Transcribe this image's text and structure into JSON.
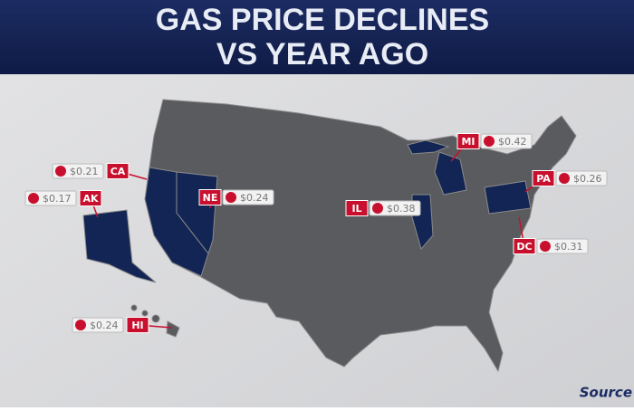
{
  "header": {
    "title_line1": "GAS PRICE DECLINES",
    "title_line2": "VS YEAR AGO"
  },
  "callouts": [
    {
      "state": "CA",
      "price": "$0.21"
    },
    {
      "state": "AK",
      "price": "$0.17"
    },
    {
      "state": "NE",
      "price": "$0.24"
    },
    {
      "state": "MI",
      "price": "$0.42"
    },
    {
      "state": "IL",
      "price": "$0.38"
    },
    {
      "state": "PA",
      "price": "$0.26"
    },
    {
      "state": "DC",
      "price": "$0.31"
    },
    {
      "state": "HI",
      "price": "$0.24"
    }
  ],
  "footer": {
    "source": "Source"
  }
}
